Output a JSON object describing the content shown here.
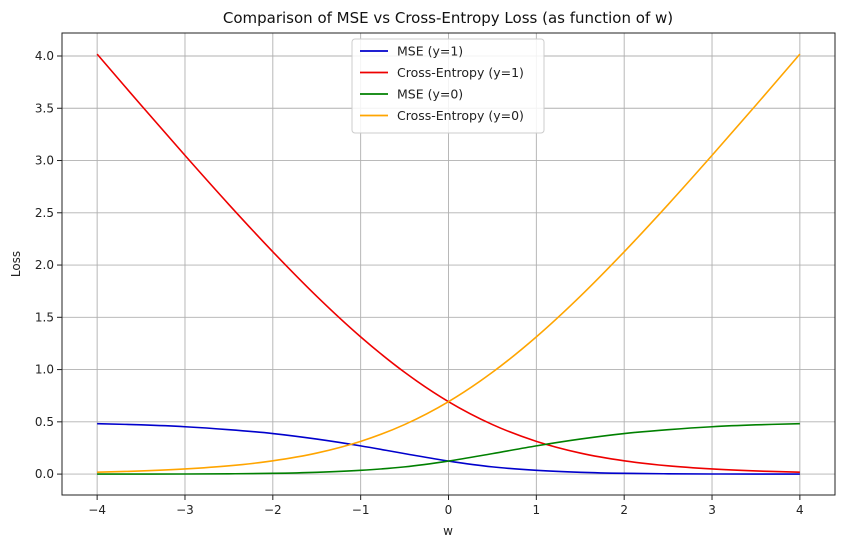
{
  "chart_data": {
    "type": "line",
    "title": "Comparison of MSE vs Cross-Entropy Loss (as function of w)",
    "xlabel": "w",
    "ylabel": "Loss",
    "xlim": [
      -4.4,
      4.4
    ],
    "ylim": [
      -0.2,
      4.22
    ],
    "xticks": [
      -4,
      -3,
      -2,
      -1,
      0,
      1,
      2,
      3,
      4
    ],
    "xtick_labels": [
      "−4",
      "−3",
      "−2",
      "−1",
      "0",
      "1",
      "2",
      "3",
      "4"
    ],
    "yticks": [
      0.0,
      0.5,
      1.0,
      1.5,
      2.0,
      2.5,
      3.0,
      3.5,
      4.0
    ],
    "ytick_labels": [
      "0.0",
      "0.5",
      "1.0",
      "1.5",
      "2.0",
      "2.5",
      "3.0",
      "3.5",
      "4.0"
    ],
    "grid": true,
    "legend_position": "top-center",
    "x": [
      -4,
      -3.5,
      -3,
      -2.5,
      -2,
      -1.5,
      -1,
      -0.5,
      0,
      0.5,
      1,
      1.5,
      2,
      2.5,
      3,
      3.5,
      4
    ],
    "series": [
      {
        "name": "MSE (y=1)",
        "color": "#0000cc",
        "values": [
          0.482,
          0.471,
          0.453,
          0.425,
          0.388,
          0.335,
          0.27,
          0.196,
          0.125,
          0.069,
          0.036,
          0.017,
          0.007,
          0.003,
          0.001,
          0.0005,
          0.0003
        ]
      },
      {
        "name": "Cross-Entropy (y=1)",
        "color": "#ee0000",
        "values": [
          4.018,
          3.53,
          3.049,
          2.579,
          2.127,
          1.701,
          1.313,
          0.974,
          0.693,
          0.474,
          0.313,
          0.201,
          0.127,
          0.079,
          0.049,
          0.03,
          0.018
        ]
      },
      {
        "name": "MSE (y=0)",
        "color": "#008000",
        "values": [
          0.0003,
          0.0005,
          0.001,
          0.003,
          0.007,
          0.017,
          0.036,
          0.069,
          0.125,
          0.196,
          0.27,
          0.335,
          0.388,
          0.425,
          0.453,
          0.471,
          0.482
        ]
      },
      {
        "name": "Cross-Entropy (y=0)",
        "color": "#ffa500",
        "values": [
          0.018,
          0.03,
          0.049,
          0.079,
          0.127,
          0.201,
          0.313,
          0.474,
          0.693,
          0.974,
          1.313,
          1.701,
          2.127,
          2.579,
          3.049,
          3.53,
          4.018
        ]
      }
    ]
  }
}
